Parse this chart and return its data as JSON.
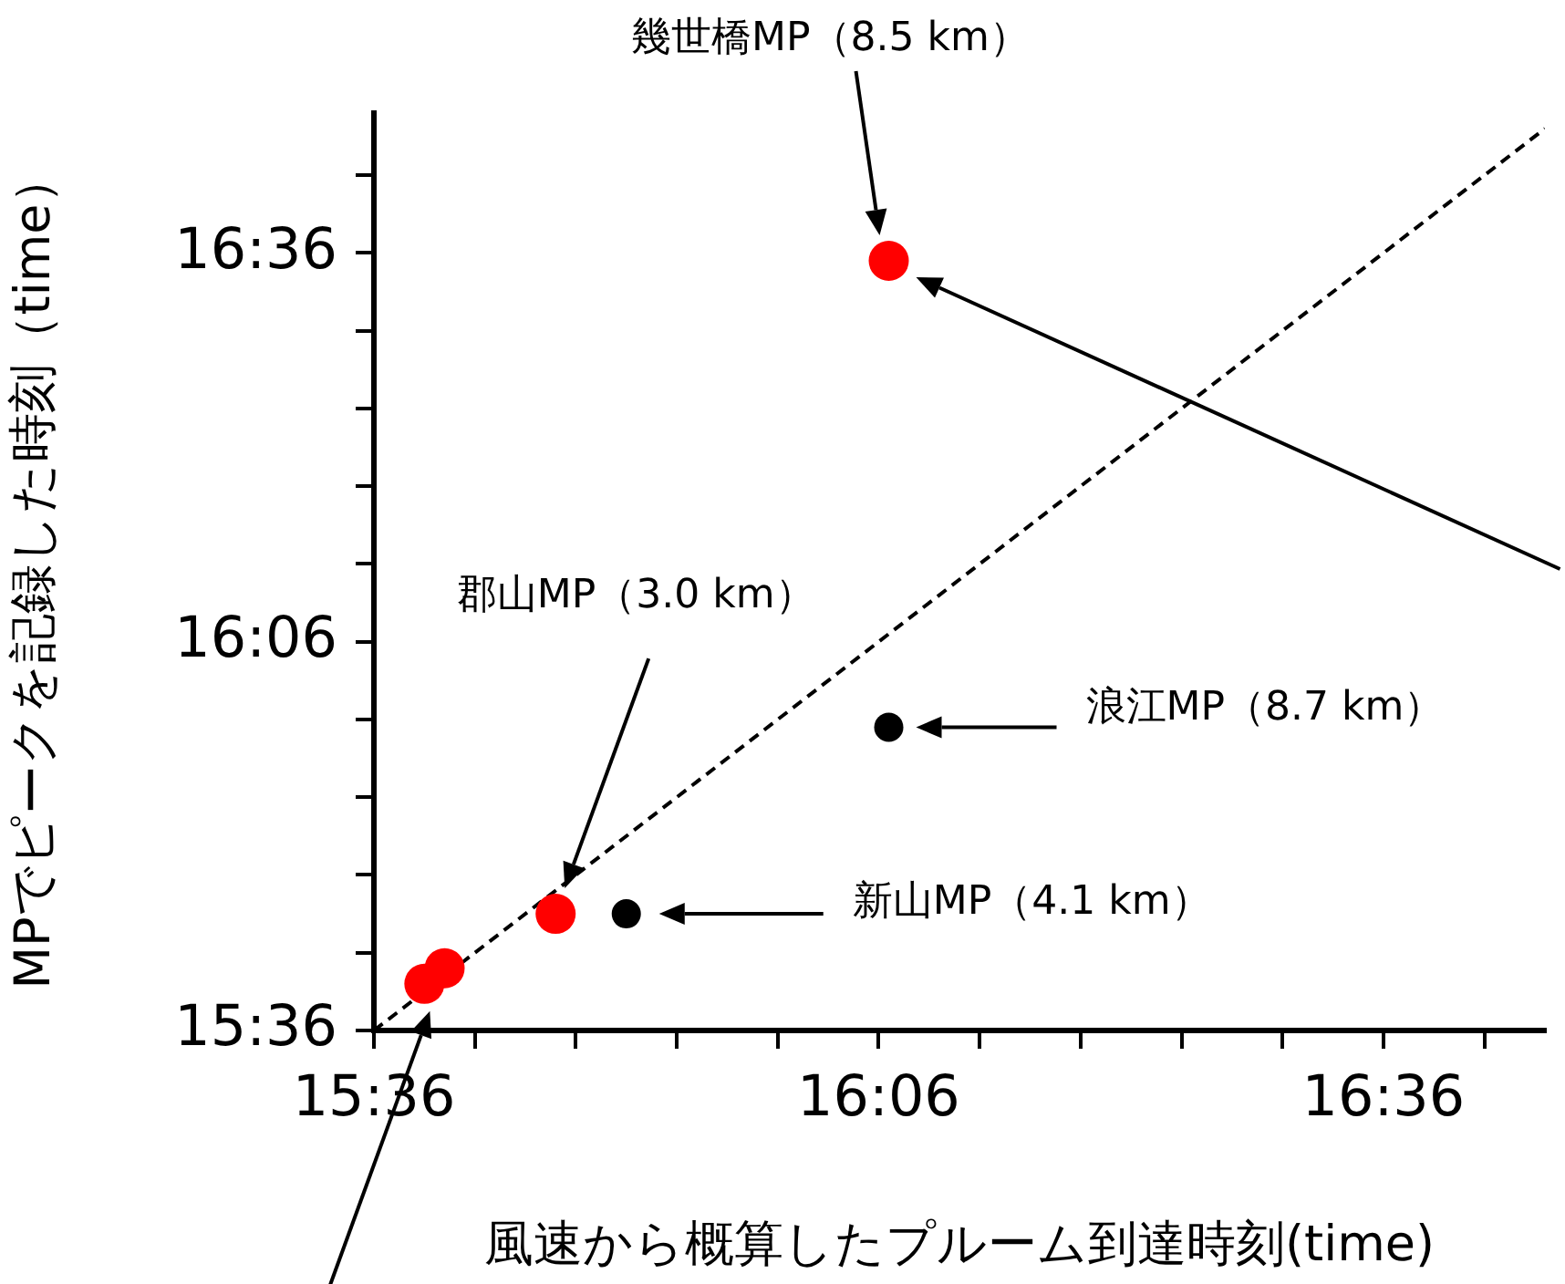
{
  "chart_data": {
    "type": "scatter",
    "xlabel": "風速から概算したプルーム到達時刻(time)",
    "ylabel": "MPでピークを記録した時刻（time）",
    "xlim": [
      15.6,
      16.76
    ],
    "ylim": [
      15.6,
      16.78
    ],
    "xticks": [
      {
        "value": 15.6,
        "label": "15:36"
      },
      {
        "value": 15.7,
        "label": null
      },
      {
        "value": 15.8,
        "label": null
      },
      {
        "value": 15.9,
        "label": null
      },
      {
        "value": 16.0,
        "label": null
      },
      {
        "value": 16.1,
        "label": "16:06"
      },
      {
        "value": 16.2,
        "label": null
      },
      {
        "value": 16.3,
        "label": null
      },
      {
        "value": 16.4,
        "label": null
      },
      {
        "value": 16.5,
        "label": null
      },
      {
        "value": 16.6,
        "label": "16:36"
      },
      {
        "value": 16.7,
        "label": null
      }
    ],
    "yticks": [
      {
        "value": 15.6,
        "label": "15:36"
      },
      {
        "value": 15.7,
        "label": null
      },
      {
        "value": 15.8,
        "label": null
      },
      {
        "value": 15.9,
        "label": null
      },
      {
        "value": 16.0,
        "label": null
      },
      {
        "value": 16.1,
        "label": "16:06"
      },
      {
        "value": 16.2,
        "label": null
      },
      {
        "value": 16.3,
        "label": null
      },
      {
        "value": 16.4,
        "label": null
      },
      {
        "value": 16.5,
        "label": null
      },
      {
        "value": 16.6,
        "label": "16:36"
      },
      {
        "value": 16.7,
        "label": null
      }
    ],
    "grid": false,
    "legend": false,
    "marker": "circle",
    "series": [
      {
        "type": "line",
        "color": "#000000",
        "line_style": "dashed",
        "marker": "none",
        "x": [
          15.6,
          16.76
        ],
        "values": [
          15.6,
          16.76
        ]
      },
      {
        "color": "#ff0000",
        "x": [
          15.65,
          15.67,
          15.78,
          16.11
        ],
        "values": [
          15.66,
          15.68,
          15.75,
          16.59
        ]
      },
      {
        "color": "#000000",
        "x": [
          15.85,
          16.11
        ],
        "values": [
          15.75,
          15.99
        ]
      }
    ],
    "annotations": [
      "幾世橋MP（8.5 km）",
      "郡山MP（3.0 km）",
      "浪江MP（8.7 km）",
      "新山MP（4.1 km）"
    ]
  }
}
